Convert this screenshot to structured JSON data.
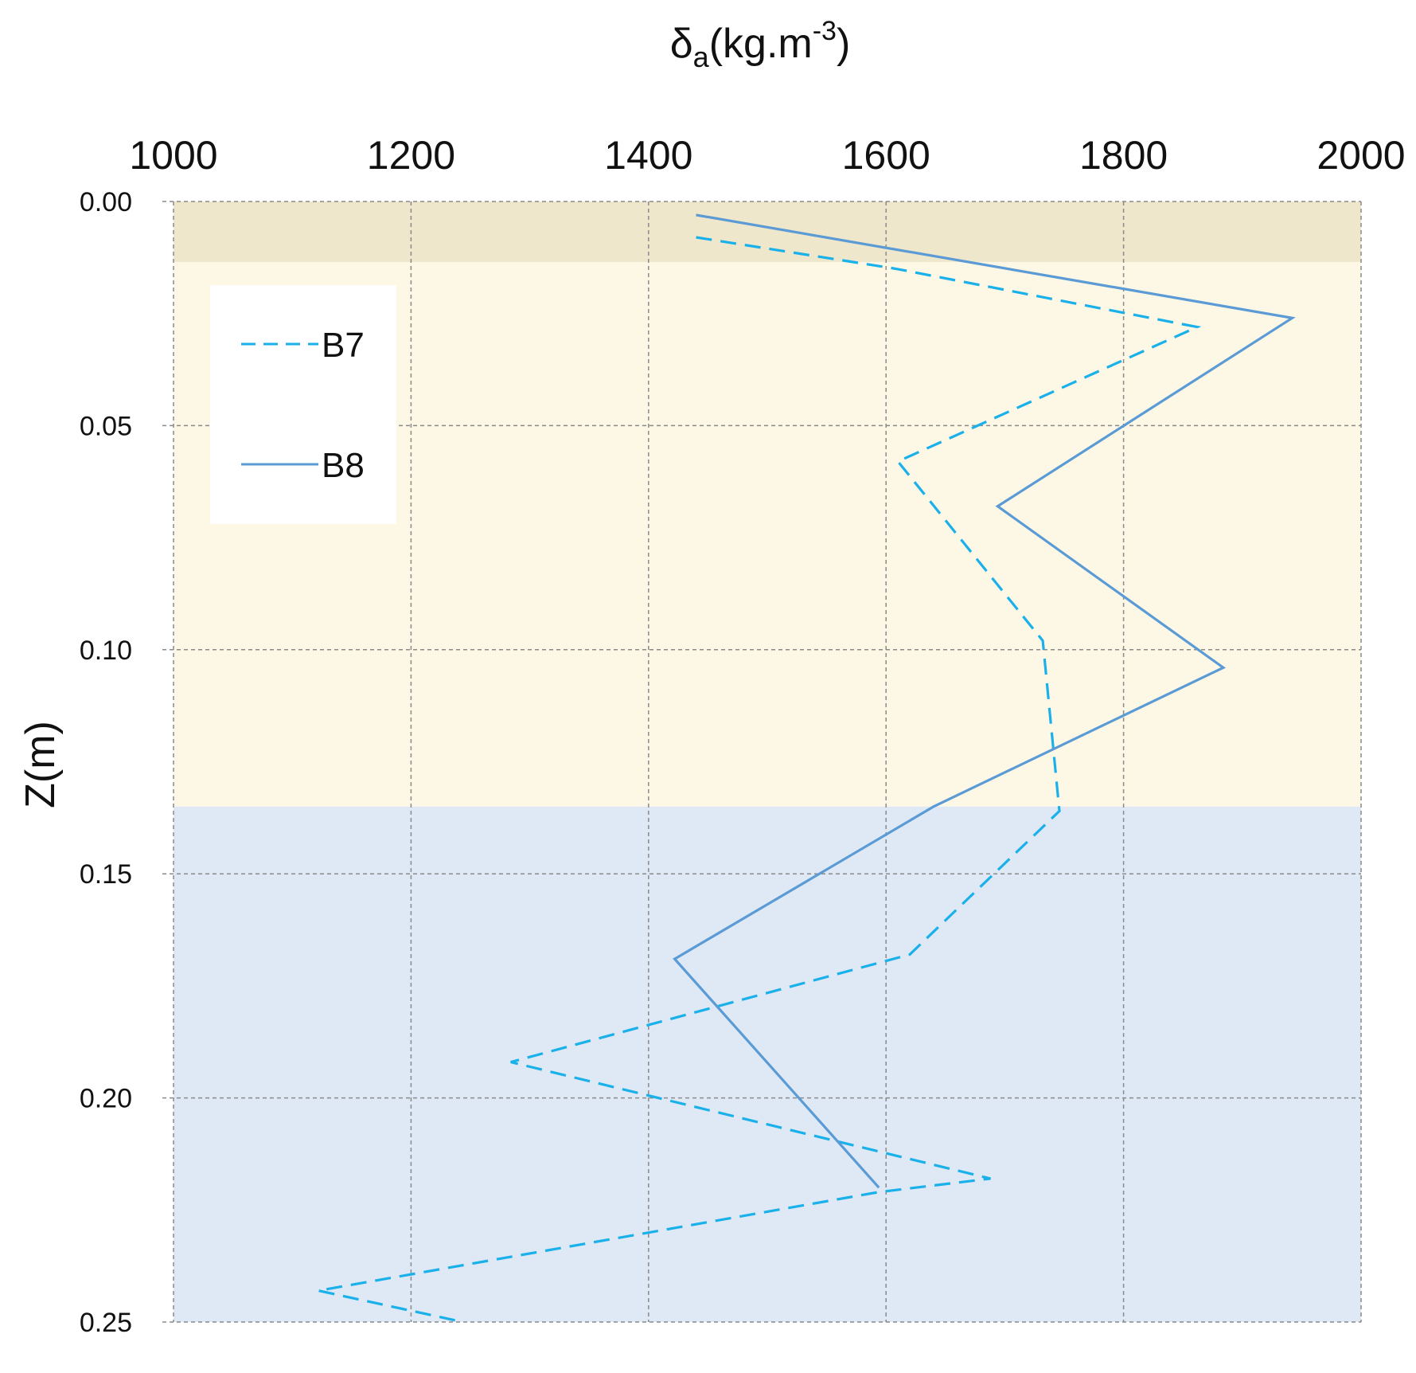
{
  "chart_data": {
    "type": "line",
    "xlabel": {
      "symbol": "δ",
      "sub": "a",
      "unit_pre": "(kg.m",
      "sup": "-3",
      "unit_post": ")"
    },
    "ylabel": "Z(m)",
    "xlim": [
      1000,
      2000
    ],
    "ylim": [
      0,
      0.25
    ],
    "y_inverted": true,
    "x_axis_position": "top",
    "x_ticks": [
      "1000",
      "1200",
      "1400",
      "1600",
      "1800",
      "2000"
    ],
    "y_ticks": [
      "0.00",
      "0.05",
      "0.10",
      "0.15",
      "0.20",
      "0.25"
    ],
    "grid": true,
    "legend_position": "top-left",
    "bands": [
      {
        "from": 0.0,
        "to": 0.0135,
        "color": "#efe7cc"
      },
      {
        "from": 0.0135,
        "to": 0.135,
        "color": "#fdf7e6"
      },
      {
        "from": 0.135,
        "to": 0.25,
        "color": "#dfe9f5"
      }
    ],
    "series": [
      {
        "name": "B7",
        "style": "dashed",
        "color": "#1ab0ea",
        "points": [
          [
            1440,
            0.008
          ],
          [
            1608,
            0.015
          ],
          [
            1862,
            0.028
          ],
          [
            1610,
            0.058
          ],
          [
            1732,
            0.098
          ],
          [
            1746,
            0.136
          ],
          [
            1620,
            0.168
          ],
          [
            1284,
            0.192
          ],
          [
            1688,
            0.218
          ],
          [
            1594,
            0.221
          ],
          [
            1122,
            0.243
          ],
          [
            1244,
            0.25
          ]
        ]
      },
      {
        "name": "B8",
        "style": "solid",
        "color": "#5b9bd5",
        "points": [
          [
            1440,
            0.003
          ],
          [
            1942,
            0.026
          ],
          [
            1694,
            0.068
          ],
          [
            1884,
            0.104
          ],
          [
            1640,
            0.135
          ],
          [
            1422,
            0.169
          ],
          [
            1594,
            0.22
          ]
        ]
      }
    ]
  }
}
